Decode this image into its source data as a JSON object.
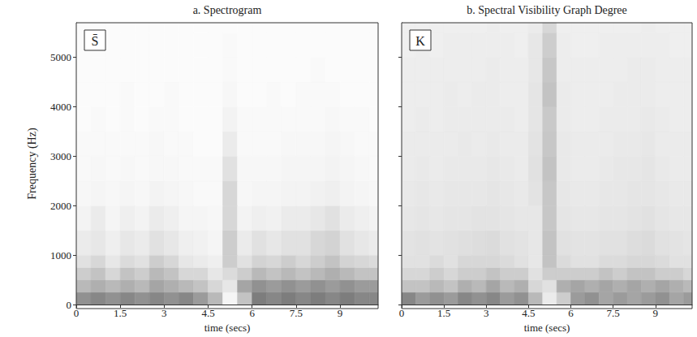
{
  "chart_data": [
    {
      "type": "heatmap",
      "title": "a. Spectrogram",
      "label": "S̄",
      "x_label": "time (secs)",
      "y_label": "Frequency (Hz)",
      "xlim": [
        0,
        10.3
      ],
      "ylim": [
        0,
        5700
      ],
      "xticks": [
        0,
        1.5,
        3,
        4.5,
        6,
        7.5,
        9
      ],
      "yticks": [
        0,
        1000,
        2000,
        3000,
        4000,
        5000
      ],
      "grid": false,
      "zlim": [
        0,
        1
      ],
      "x_bins": [
        0,
        0.5,
        1,
        1.5,
        2,
        2.5,
        3,
        3.5,
        4,
        4.5,
        5,
        5.5,
        6,
        6.5,
        7,
        7.5,
        8,
        8.5,
        9,
        9.5,
        10,
        10.5
      ],
      "y_bins": [
        0,
        250,
        500,
        750,
        1000,
        1500,
        2000,
        2500,
        3000,
        3500,
        4000,
        4500,
        5000,
        5500,
        6000
      ],
      "cells": [
        [
          0.55,
          0.6,
          0.55,
          0.6,
          0.55,
          0.6,
          0.55,
          0.6,
          0.5,
          0.35,
          0.05,
          0.3,
          0.65,
          0.6,
          0.65,
          0.6,
          0.65,
          0.6,
          0.65,
          0.6,
          0.6
        ],
        [
          0.35,
          0.4,
          0.35,
          0.4,
          0.35,
          0.45,
          0.4,
          0.35,
          0.3,
          0.2,
          0.12,
          0.45,
          0.55,
          0.5,
          0.55,
          0.5,
          0.55,
          0.5,
          0.55,
          0.5,
          0.5
        ],
        [
          0.25,
          0.3,
          0.2,
          0.3,
          0.25,
          0.35,
          0.3,
          0.2,
          0.2,
          0.12,
          0.18,
          0.25,
          0.35,
          0.3,
          0.35,
          0.3,
          0.35,
          0.4,
          0.35,
          0.3,
          0.3
        ],
        [
          0.15,
          0.2,
          0.12,
          0.18,
          0.15,
          0.25,
          0.2,
          0.12,
          0.1,
          0.08,
          0.25,
          0.15,
          0.22,
          0.2,
          0.25,
          0.2,
          0.25,
          0.3,
          0.22,
          0.2,
          0.18
        ],
        [
          0.1,
          0.12,
          0.08,
          0.12,
          0.1,
          0.15,
          0.12,
          0.08,
          0.07,
          0.05,
          0.25,
          0.1,
          0.15,
          0.12,
          0.15,
          0.15,
          0.2,
          0.22,
          0.15,
          0.12,
          0.1
        ],
        [
          0.06,
          0.1,
          0.05,
          0.08,
          0.06,
          0.1,
          0.08,
          0.05,
          0.05,
          0.04,
          0.2,
          0.06,
          0.08,
          0.07,
          0.1,
          0.1,
          0.12,
          0.15,
          0.1,
          0.08,
          0.06
        ],
        [
          0.04,
          0.05,
          0.04,
          0.05,
          0.04,
          0.06,
          0.05,
          0.04,
          0.03,
          0.03,
          0.2,
          0.04,
          0.05,
          0.05,
          0.06,
          0.06,
          0.07,
          0.08,
          0.06,
          0.05,
          0.04
        ],
        [
          0.03,
          0.04,
          0.03,
          0.04,
          0.03,
          0.04,
          0.04,
          0.03,
          0.03,
          0.03,
          0.15,
          0.04,
          0.04,
          0.04,
          0.05,
          0.05,
          0.05,
          0.06,
          0.05,
          0.04,
          0.03
        ],
        [
          0.03,
          0.03,
          0.03,
          0.03,
          0.03,
          0.04,
          0.03,
          0.03,
          0.02,
          0.02,
          0.1,
          0.03,
          0.03,
          0.03,
          0.04,
          0.04,
          0.04,
          0.05,
          0.04,
          0.03,
          0.03
        ],
        [
          0.02,
          0.03,
          0.02,
          0.03,
          0.02,
          0.03,
          0.03,
          0.02,
          0.02,
          0.02,
          0.06,
          0.03,
          0.03,
          0.03,
          0.03,
          0.03,
          0.03,
          0.04,
          0.03,
          0.03,
          0.02
        ],
        [
          0.02,
          0.02,
          0.02,
          0.03,
          0.02,
          0.02,
          0.03,
          0.02,
          0.02,
          0.02,
          0.04,
          0.02,
          0.02,
          0.03,
          0.02,
          0.03,
          0.03,
          0.03,
          0.02,
          0.02,
          0.02
        ],
        [
          0.02,
          0.02,
          0.02,
          0.02,
          0.02,
          0.02,
          0.02,
          0.02,
          0.02,
          0.02,
          0.03,
          0.02,
          0.02,
          0.02,
          0.02,
          0.02,
          0.03,
          0.02,
          0.02,
          0.02,
          0.02
        ],
        [
          0.02,
          0.02,
          0.02,
          0.02,
          0.02,
          0.02,
          0.02,
          0.02,
          0.02,
          0.02,
          0.03,
          0.02,
          0.02,
          0.02,
          0.02,
          0.02,
          0.02,
          0.02,
          0.02,
          0.02,
          0.02
        ],
        [
          0.02,
          0.02,
          0.02,
          0.02,
          0.02,
          0.02,
          0.02,
          0.02,
          0.02,
          0.02,
          0.02,
          0.02,
          0.02,
          0.02,
          0.02,
          0.02,
          0.02,
          0.02,
          0.02,
          0.02,
          0.02
        ]
      ]
    },
    {
      "type": "heatmap",
      "title": "b. Spectral Visibility Graph Degree",
      "label": "K",
      "x_label": "time (secs)",
      "xlim": [
        0,
        10.3
      ],
      "ylim": [
        0,
        5700
      ],
      "xticks": [
        0,
        1.5,
        3,
        4.5,
        6,
        7.5,
        9
      ],
      "yticks": [
        0,
        1000,
        2000,
        3000,
        4000,
        5000
      ],
      "grid": false,
      "tick_labels": "x",
      "zlim": [
        0,
        1
      ],
      "x_bins": [
        0,
        0.5,
        1,
        1.5,
        2,
        2.5,
        3,
        3.5,
        4,
        4.5,
        5,
        5.5,
        6,
        6.5,
        7,
        7.5,
        8,
        8.5,
        9,
        9.5,
        10,
        10.5
      ],
      "y_bins": [
        0,
        250,
        500,
        750,
        1000,
        1500,
        2000,
        2500,
        3000,
        3500,
        4000,
        4500,
        5000,
        5500,
        6000
      ],
      "cells": [
        [
          0.6,
          0.5,
          0.55,
          0.5,
          0.6,
          0.55,
          0.6,
          0.5,
          0.55,
          0.35,
          0.1,
          0.25,
          0.5,
          0.55,
          0.45,
          0.5,
          0.45,
          0.5,
          0.55,
          0.45,
          0.5
        ],
        [
          0.3,
          0.3,
          0.35,
          0.3,
          0.4,
          0.35,
          0.45,
          0.35,
          0.4,
          0.2,
          0.15,
          0.4,
          0.45,
          0.4,
          0.45,
          0.4,
          0.45,
          0.4,
          0.45,
          0.4,
          0.35
        ],
        [
          0.2,
          0.2,
          0.25,
          0.2,
          0.25,
          0.25,
          0.3,
          0.25,
          0.25,
          0.15,
          0.25,
          0.25,
          0.25,
          0.25,
          0.3,
          0.25,
          0.3,
          0.3,
          0.25,
          0.25,
          0.2
        ],
        [
          0.15,
          0.15,
          0.18,
          0.15,
          0.2,
          0.2,
          0.2,
          0.18,
          0.15,
          0.12,
          0.3,
          0.18,
          0.15,
          0.15,
          0.18,
          0.18,
          0.2,
          0.2,
          0.18,
          0.15,
          0.15
        ],
        [
          0.14,
          0.15,
          0.14,
          0.15,
          0.16,
          0.17,
          0.18,
          0.15,
          0.14,
          0.12,
          0.3,
          0.15,
          0.14,
          0.14,
          0.15,
          0.15,
          0.17,
          0.18,
          0.15,
          0.14,
          0.13
        ],
        [
          0.12,
          0.13,
          0.12,
          0.13,
          0.13,
          0.14,
          0.14,
          0.13,
          0.12,
          0.12,
          0.28,
          0.13,
          0.12,
          0.12,
          0.13,
          0.13,
          0.14,
          0.15,
          0.13,
          0.12,
          0.12
        ],
        [
          0.11,
          0.12,
          0.11,
          0.12,
          0.12,
          0.12,
          0.13,
          0.12,
          0.11,
          0.14,
          0.28,
          0.12,
          0.11,
          0.11,
          0.12,
          0.12,
          0.13,
          0.13,
          0.12,
          0.11,
          0.11
        ],
        [
          0.1,
          0.11,
          0.1,
          0.11,
          0.11,
          0.11,
          0.12,
          0.11,
          0.1,
          0.15,
          0.3,
          0.11,
          0.1,
          0.1,
          0.11,
          0.12,
          0.12,
          0.13,
          0.11,
          0.1,
          0.1
        ],
        [
          0.1,
          0.1,
          0.1,
          0.1,
          0.11,
          0.1,
          0.11,
          0.1,
          0.1,
          0.14,
          0.28,
          0.11,
          0.1,
          0.1,
          0.1,
          0.11,
          0.11,
          0.12,
          0.1,
          0.1,
          0.1
        ],
        [
          0.09,
          0.1,
          0.09,
          0.1,
          0.1,
          0.1,
          0.1,
          0.1,
          0.09,
          0.13,
          0.27,
          0.1,
          0.09,
          0.09,
          0.1,
          0.1,
          0.1,
          0.11,
          0.1,
          0.09,
          0.09
        ],
        [
          0.09,
          0.09,
          0.09,
          0.1,
          0.09,
          0.1,
          0.1,
          0.09,
          0.09,
          0.13,
          0.3,
          0.1,
          0.09,
          0.09,
          0.09,
          0.1,
          0.1,
          0.1,
          0.09,
          0.09,
          0.09
        ],
        [
          0.09,
          0.09,
          0.09,
          0.09,
          0.09,
          0.09,
          0.1,
          0.09,
          0.09,
          0.12,
          0.28,
          0.09,
          0.09,
          0.09,
          0.09,
          0.09,
          0.1,
          0.1,
          0.09,
          0.09,
          0.09
        ],
        [
          0.08,
          0.09,
          0.08,
          0.09,
          0.09,
          0.09,
          0.09,
          0.09,
          0.08,
          0.12,
          0.25,
          0.09,
          0.08,
          0.08,
          0.09,
          0.09,
          0.09,
          0.09,
          0.09,
          0.08,
          0.08
        ],
        [
          0.08,
          0.08,
          0.08,
          0.08,
          0.08,
          0.08,
          0.09,
          0.08,
          0.08,
          0.1,
          0.2,
          0.08,
          0.08,
          0.08,
          0.08,
          0.08,
          0.08,
          0.09,
          0.08,
          0.08,
          0.08
        ]
      ]
    }
  ]
}
